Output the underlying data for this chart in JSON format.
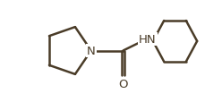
{
  "bg_color": "#ffffff",
  "line_color": "#4a3c28",
  "line_width": 1.8,
  "font_size": 9.5,
  "N_label": "N",
  "NH_label": "HN",
  "O_label": "O",
  "figsize": [
    2.48,
    1.15
  ],
  "dpi": 100,
  "xlim": [
    0,
    10
  ],
  "ylim": [
    0,
    4.3
  ]
}
